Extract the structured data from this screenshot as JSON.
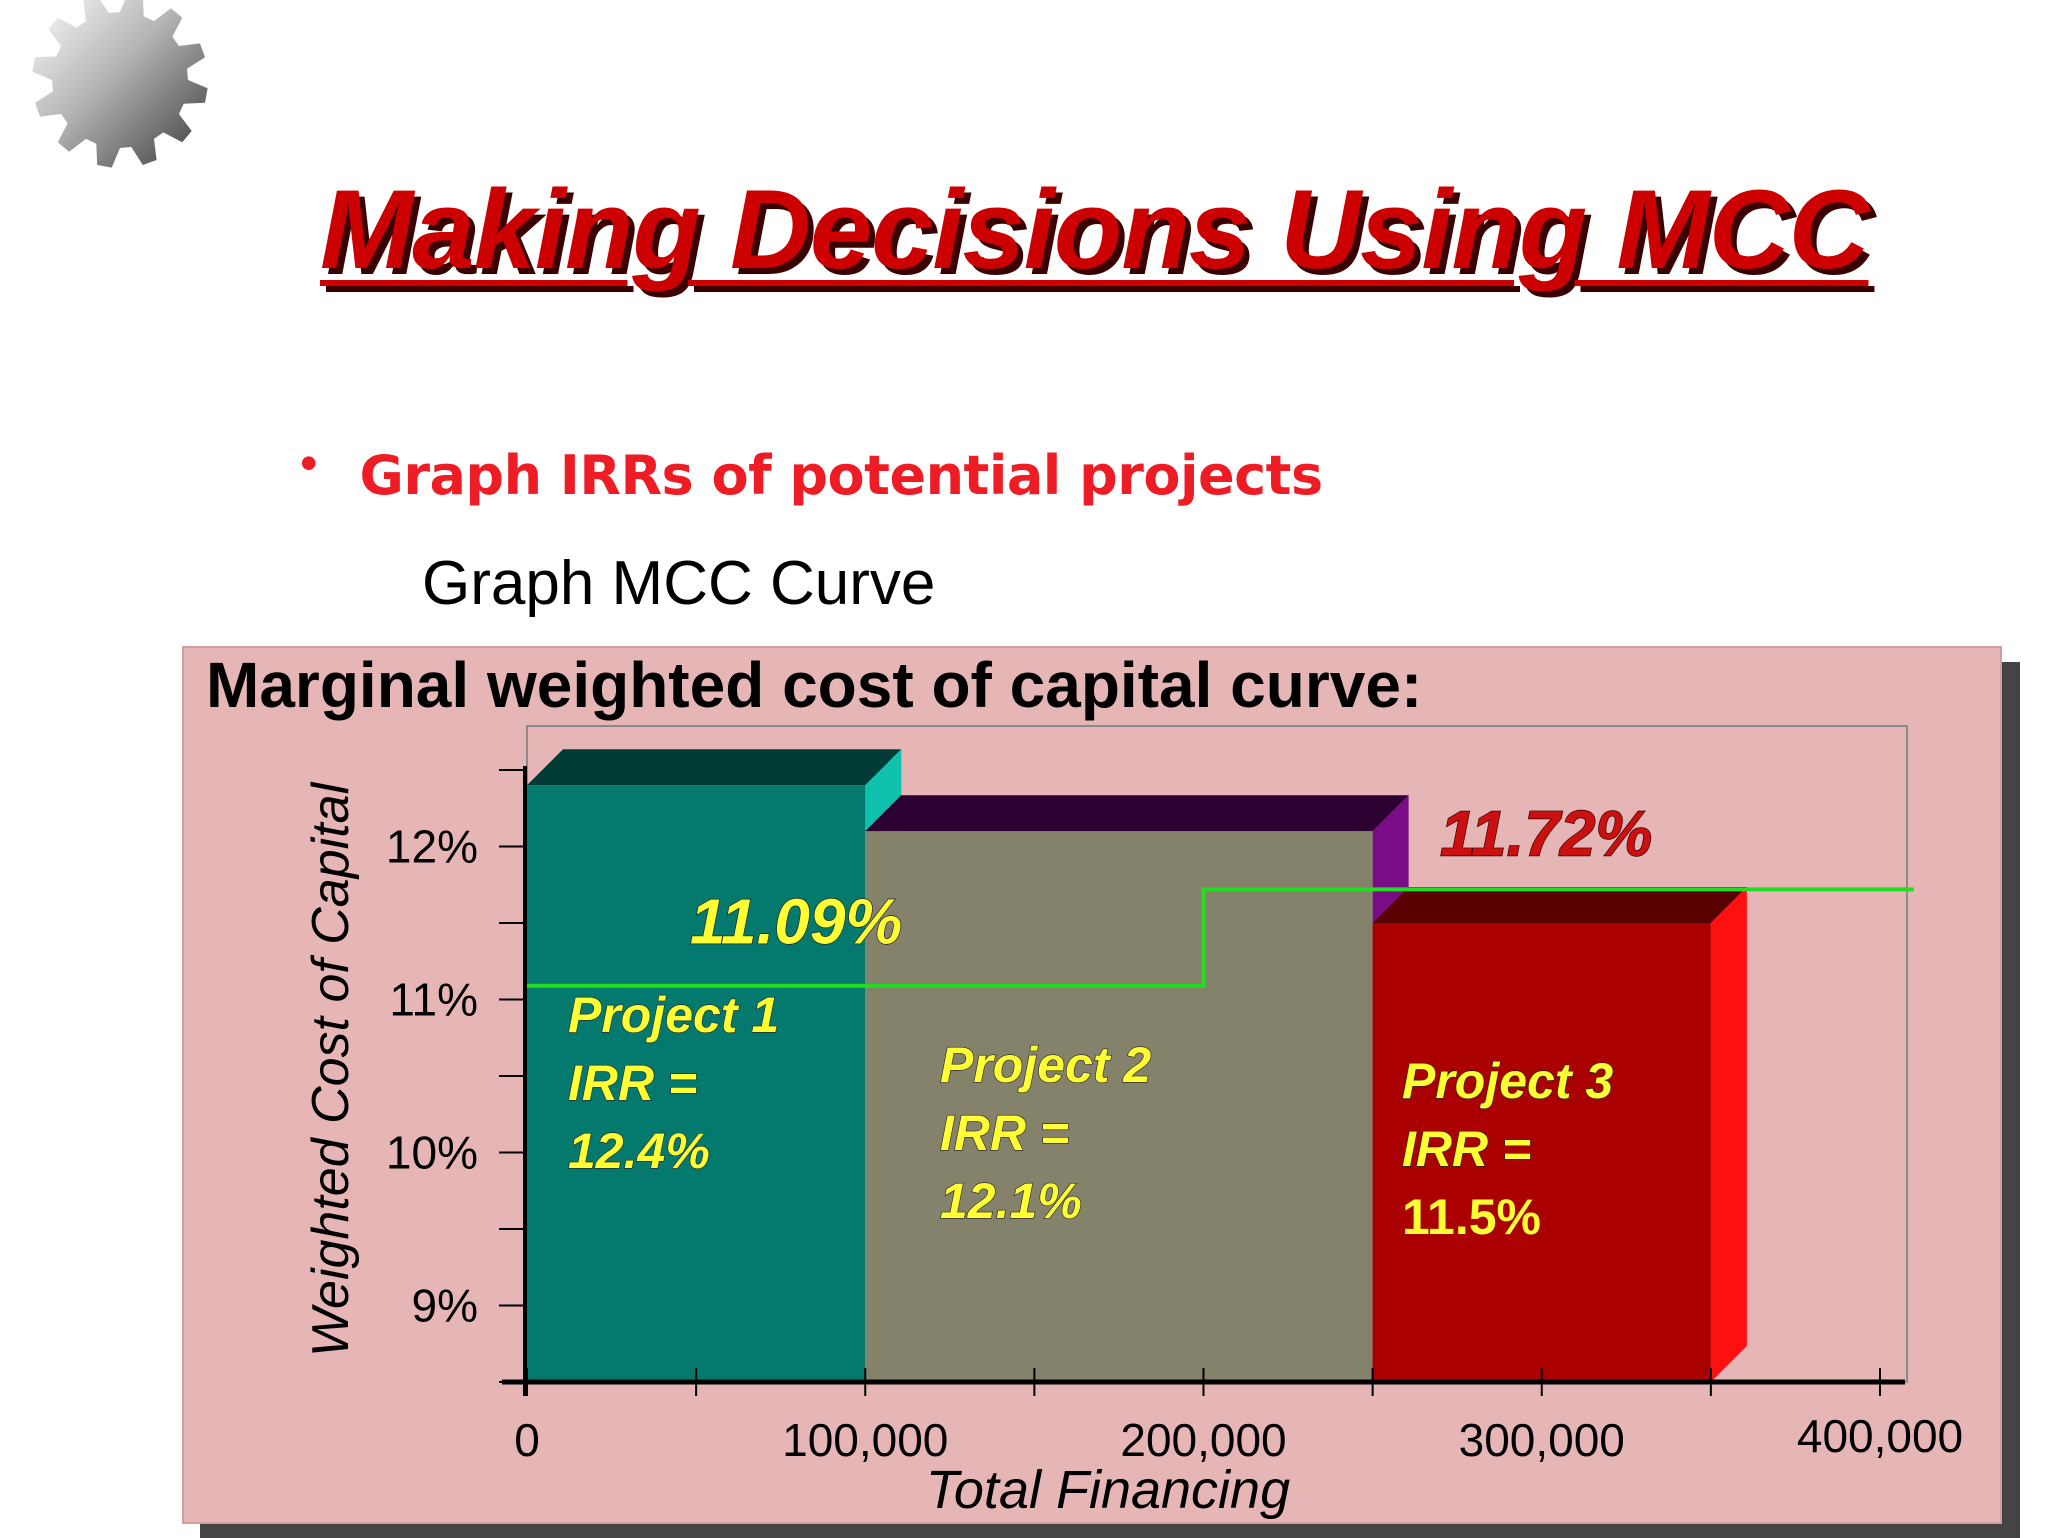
{
  "slide": {
    "title": "Making Decisions Using MCC",
    "bullet": "Graph IRRs of potential projects",
    "subtext": "Graph MCC Curve"
  },
  "icons": {
    "decoration": "gear-icon"
  },
  "colors": {
    "title": "#cc0000",
    "bullet": "#ee1c24",
    "panel_bg": "#e6b6b7",
    "project1": "#037a6d",
    "project2": "#85826b",
    "project3": "#ab0000",
    "mcc_line": "#22dd22",
    "label_yellow": "#ffff33"
  },
  "chart_data": {
    "type": "bar",
    "title": "Marginal weighted cost of capital curve:",
    "xlabel": "Total Financing",
    "ylabel": "Weighted Cost of Capital",
    "xlim": [
      0,
      400000
    ],
    "ylim": [
      8.5,
      12.5
    ],
    "x_ticks": [
      {
        "value": 0,
        "label": "0"
      },
      {
        "value": 100000,
        "label": "100,000"
      },
      {
        "value": 200000,
        "label": "200,000"
      },
      {
        "value": 300000,
        "label": "300,000"
      },
      {
        "value": 400000,
        "label": "400,000"
      }
    ],
    "y_ticks": [
      {
        "value": 9,
        "label": "9%"
      },
      {
        "value": 10,
        "label": "10%"
      },
      {
        "value": 11,
        "label": "11%"
      },
      {
        "value": 12,
        "label": "12%"
      }
    ],
    "projects": [
      {
        "name": "Project 1",
        "irr_label": "IRR =",
        "irr_text": "12.4%",
        "irr": 12.4,
        "x_start": 0,
        "x_end": 100000
      },
      {
        "name": "Project 2",
        "irr_label": "IRR =",
        "irr_text": "12.1%",
        "irr": 12.1,
        "x_start": 100000,
        "x_end": 250000
      },
      {
        "name": "Project 3",
        "irr_label": "IRR =",
        "irr_text": "11.5%",
        "irr": 11.5,
        "x_start": 250000,
        "x_end": 350000
      }
    ],
    "mcc": {
      "break_x": 200000,
      "levels": [
        {
          "value": 11.09,
          "label": "11.09%",
          "x_start": 0,
          "x_end": 200000
        },
        {
          "value": 11.72,
          "label": "11.72%",
          "x_start": 200000,
          "x_end": 410000
        }
      ]
    }
  }
}
